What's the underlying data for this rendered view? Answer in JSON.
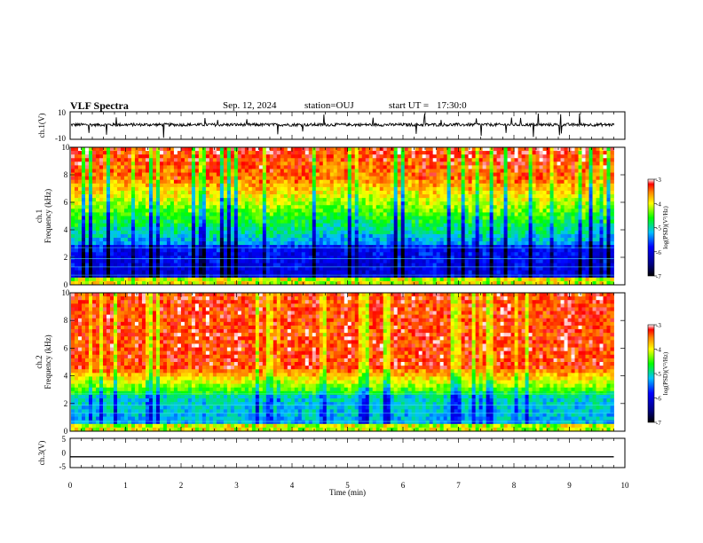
{
  "header": {
    "title": "VLF Spectra",
    "date": "Sep. 12, 2024",
    "station": "station=OUJ",
    "start_label": "start UT =",
    "start_time": "17:30:0"
  },
  "chart_data": [
    {
      "type": "line",
      "panel": "ch1-waveform",
      "ylabel": "ch.1(V)",
      "ylim": [
        -10,
        10
      ],
      "y_ticks": [
        "10",
        "-10"
      ],
      "x_range": [
        0,
        10
      ],
      "baseline": 0,
      "description": "noisy waveform around 0 V with spikes"
    },
    {
      "type": "heatmap",
      "panel": "ch1-spectrogram",
      "ylabel": "ch.1\nFrequency (kHz)",
      "ylim": [
        0,
        10
      ],
      "y_ticks": [
        "0",
        "2",
        "4",
        "6",
        "8",
        "10"
      ],
      "x_range": [
        0,
        9.8
      ],
      "colorbar": {
        "label": "log(PSD)(V²/Hz)",
        "range": [
          -7,
          -3
        ],
        "ticks": [
          "-3",
          "-4",
          "-5",
          "-6",
          "-7"
        ]
      }
    },
    {
      "type": "heatmap",
      "panel": "ch2-spectrogram",
      "ylabel": "ch.2\nFrequency (kHz)",
      "ylim": [
        0,
        10
      ],
      "y_ticks": [
        "0",
        "2",
        "4",
        "6",
        "8",
        "10"
      ],
      "x_range": [
        0,
        9.8
      ],
      "colorbar": {
        "label": "log(PSD)(V²/Hz)",
        "range": [
          -7,
          -3
        ],
        "ticks": [
          "-3",
          "-4",
          "-5",
          "-6",
          "-7"
        ]
      }
    },
    {
      "type": "line",
      "panel": "ch3-waveform",
      "ylabel": "ch.3(V)",
      "ylim": [
        -5,
        5
      ],
      "y_ticks": [
        "5",
        "0",
        "-5"
      ],
      "x_range": [
        0,
        10
      ],
      "values": [
        -1.3,
        -1.3
      ]
    }
  ],
  "x_axis": {
    "label": "Time (min)",
    "ticks": [
      "0",
      "1",
      "2",
      "3",
      "4",
      "5",
      "6",
      "7",
      "8",
      "9",
      "10"
    ]
  }
}
